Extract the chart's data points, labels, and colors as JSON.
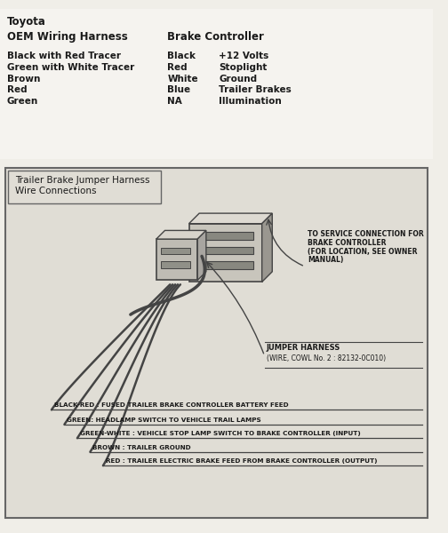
{
  "title": "Toyota",
  "top_bg": "#f0eee8",
  "diag_bg": "#d8d5cc",
  "border_color": "#555555",
  "table_title1": "OEM Wiring Harness",
  "table_title2": "Brake Controller",
  "oem_wires": [
    "Black with Red Tracer",
    "Green with White Tracer",
    "Brown",
    "Red",
    "Green"
  ],
  "bc_colors": [
    "Black",
    "Red",
    "White",
    "Blue",
    "NA"
  ],
  "bc_functions": [
    "+12 Volts",
    "Stoplight",
    "Ground",
    "Trailer Brakes",
    "Illumination"
  ],
  "diagram_box_label1": "Trailer Brake Jumper Harness",
  "diagram_box_label2": "Wire Connections",
  "ann1": [
    "TO SERVICE CONNECTION FOR",
    "BRAKE CONTROLLER",
    "(FOR LOCATION, SEE OWNER",
    "MANUAL)"
  ],
  "ann2_line1": "JUMPER HARNESS",
  "ann2_line2": "(WIRE, COWL No. 2 : 82132-0C010)",
  "wire_labels": [
    "BLACK-RED : FUSED TRAILER BRAKE CONTROLLER BATTERY FEED",
    "GREEN: HEADLAMP SWITCH TO VEHICLE TRAIL LAMPS",
    "GREEN-WHITE : VEHICLE STOP LAMP SWITCH TO BRAKE CONTROLLER (INPUT)",
    "BROWN : TRAILER GROUND",
    "RED : TRAILER ELECTRIC BRAKE FEED FROM BRAKE CONTROLLER (OUTPUT)"
  ],
  "text_color": "#1a1a1a",
  "wire_color": "#444444",
  "conn_face": "#c8c5bc",
  "conn_top": "#dedad2",
  "conn_side": "#9a9790",
  "conn_slot": "#888880"
}
